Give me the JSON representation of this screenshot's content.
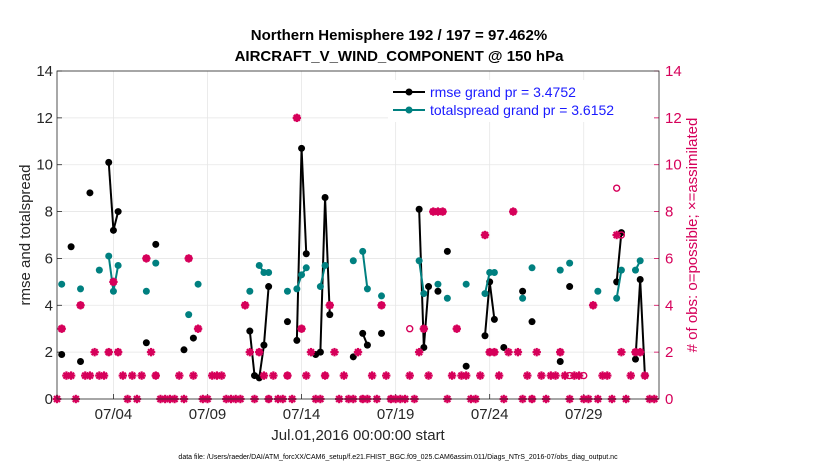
{
  "chart_data": {
    "type": "line",
    "title": "Northern Hemisphere 192 / 197 = 97.462%",
    "subtitle": "AIRCRAFT_V_WIND_COMPONENT @ 150 hPa",
    "xlabel": "Jul.01,2016 00:00:00 start",
    "ylabel": "rmse and totalspread",
    "y2label": "# of obs: o=possible; ×=assimilated",
    "xlim": [
      0,
      32
    ],
    "ylim": [
      0,
      14
    ],
    "y2lim": [
      0,
      14
    ],
    "x_ticks": [
      3,
      8,
      13,
      18,
      23,
      28
    ],
    "x_tick_labels": [
      "07/04",
      "07/09",
      "07/14",
      "07/19",
      "07/24",
      "07/29"
    ],
    "y_ticks": [
      0,
      2,
      4,
      6,
      8,
      10,
      12,
      14
    ],
    "y_tick_labels": [
      "0",
      "2",
      "4",
      "6",
      "8",
      "10",
      "12",
      "14"
    ],
    "grid": true,
    "legend_position": "top-right",
    "series": [
      {
        "name": "rmse grand pr = 3.4752",
        "color": "#000000",
        "points": [
          [
            0.25,
            1.9
          ],
          [
            0.75,
            6.5
          ],
          [
            1.25,
            1.6
          ],
          [
            1.75,
            8.8
          ],
          [
            2.75,
            10.1
          ],
          [
            3.0,
            7.2
          ],
          [
            3.25,
            8.0
          ],
          [
            4.75,
            2.4
          ],
          [
            5.25,
            6.6
          ],
          [
            6.75,
            2.1
          ],
          [
            7.25,
            2.6
          ],
          [
            10.25,
            2.9
          ],
          [
            10.5,
            1.0
          ],
          [
            10.75,
            0.9
          ],
          [
            11.0,
            2.3
          ],
          [
            11.25,
            4.8
          ],
          [
            12.25,
            3.3
          ],
          [
            12.75,
            2.5
          ],
          [
            13.0,
            10.7
          ],
          [
            13.25,
            6.2
          ],
          [
            13.75,
            1.9
          ],
          [
            14.0,
            2.0
          ],
          [
            14.25,
            8.6
          ],
          [
            14.5,
            3.6
          ],
          [
            15.75,
            1.8
          ],
          [
            16.25,
            2.8
          ],
          [
            16.5,
            2.3
          ],
          [
            17.25,
            2.8
          ],
          [
            19.25,
            8.1
          ],
          [
            19.5,
            2.2
          ],
          [
            19.75,
            4.8
          ],
          [
            20.25,
            4.6
          ],
          [
            20.75,
            6.3
          ],
          [
            21.75,
            1.4
          ],
          [
            22.75,
            2.7
          ],
          [
            23.0,
            5.0
          ],
          [
            23.25,
            3.4
          ],
          [
            23.75,
            2.2
          ],
          [
            24.75,
            4.6
          ],
          [
            25.25,
            3.3
          ],
          [
            26.75,
            1.6
          ],
          [
            27.25,
            4.8
          ],
          [
            29.75,
            5.0
          ],
          [
            30.0,
            7.1
          ],
          [
            30.75,
            1.7
          ],
          [
            31.0,
            5.1
          ],
          [
            31.25,
            1.0
          ]
        ]
      },
      {
        "name": "totalspread grand pr = 3.6152",
        "color": "#008080",
        "points": [
          [
            0.25,
            4.9
          ],
          [
            1.25,
            4.7
          ],
          [
            2.25,
            5.5
          ],
          [
            2.75,
            6.1
          ],
          [
            3.0,
            4.6
          ],
          [
            3.25,
            5.7
          ],
          [
            4.75,
            4.6
          ],
          [
            5.25,
            5.8
          ],
          [
            7.0,
            3.6
          ],
          [
            7.5,
            4.9
          ],
          [
            10.25,
            4.6
          ],
          [
            10.75,
            5.7
          ],
          [
            11.0,
            5.4
          ],
          [
            11.25,
            5.4
          ],
          [
            12.25,
            4.6
          ],
          [
            12.75,
            4.7
          ],
          [
            13.0,
            5.3
          ],
          [
            13.25,
            5.6
          ],
          [
            14.0,
            4.8
          ],
          [
            14.25,
            5.7
          ],
          [
            15.75,
            5.9
          ],
          [
            16.25,
            6.3
          ],
          [
            16.5,
            4.7
          ],
          [
            17.25,
            4.4
          ],
          [
            19.25,
            5.9
          ],
          [
            19.5,
            4.5
          ],
          [
            20.25,
            4.9
          ],
          [
            20.75,
            4.3
          ],
          [
            21.75,
            4.9
          ],
          [
            22.75,
            4.5
          ],
          [
            23.0,
            5.4
          ],
          [
            23.25,
            5.4
          ],
          [
            24.75,
            4.3
          ],
          [
            25.25,
            5.6
          ],
          [
            26.75,
            5.5
          ],
          [
            27.25,
            5.8
          ],
          [
            28.75,
            4.6
          ],
          [
            29.75,
            4.3
          ],
          [
            30.0,
            5.5
          ],
          [
            30.75,
            5.5
          ],
          [
            31.0,
            5.9
          ]
        ]
      }
    ],
    "obs_assimilated": {
      "name": "# of obs assimilated",
      "color": "#d6005a",
      "points": [
        [
          0,
          0
        ],
        [
          0.25,
          3
        ],
        [
          0.5,
          1
        ],
        [
          0.75,
          1
        ],
        [
          1.0,
          0
        ],
        [
          1.25,
          4
        ],
        [
          1.5,
          1
        ],
        [
          1.75,
          1
        ],
        [
          2.0,
          2
        ],
        [
          2.25,
          1
        ],
        [
          2.5,
          1
        ],
        [
          2.75,
          2
        ],
        [
          3.0,
          5
        ],
        [
          3.25,
          2
        ],
        [
          3.5,
          1
        ],
        [
          3.75,
          0
        ],
        [
          4.0,
          1
        ],
        [
          4.25,
          0
        ],
        [
          4.5,
          1
        ],
        [
          4.75,
          6
        ],
        [
          5.0,
          2
        ],
        [
          5.25,
          1
        ],
        [
          5.5,
          0
        ],
        [
          5.75,
          0
        ],
        [
          6.0,
          0
        ],
        [
          6.25,
          0
        ],
        [
          6.5,
          1
        ],
        [
          6.75,
          0
        ],
        [
          7.0,
          6
        ],
        [
          7.25,
          1
        ],
        [
          7.5,
          3
        ],
        [
          7.75,
          0
        ],
        [
          8.0,
          0
        ],
        [
          8.25,
          1
        ],
        [
          8.5,
          1
        ],
        [
          8.75,
          1
        ],
        [
          9.0,
          0
        ],
        [
          9.25,
          0
        ],
        [
          9.5,
          0
        ],
        [
          9.75,
          0
        ],
        [
          10.0,
          4
        ],
        [
          10.25,
          2
        ],
        [
          10.5,
          0
        ],
        [
          10.75,
          2
        ],
        [
          11.0,
          1
        ],
        [
          11.25,
          0
        ],
        [
          11.5,
          1
        ],
        [
          11.75,
          0
        ],
        [
          12.0,
          0
        ],
        [
          12.25,
          1
        ],
        [
          12.5,
          0
        ],
        [
          12.75,
          12
        ],
        [
          13.0,
          3
        ],
        [
          13.25,
          1
        ],
        [
          13.5,
          2
        ],
        [
          13.75,
          0
        ],
        [
          14.0,
          0
        ],
        [
          14.25,
          1
        ],
        [
          14.5,
          4
        ],
        [
          14.75,
          2
        ],
        [
          15.0,
          0
        ],
        [
          15.25,
          1
        ],
        [
          15.5,
          0
        ],
        [
          15.75,
          0
        ],
        [
          16.0,
          2
        ],
        [
          16.25,
          0
        ],
        [
          16.5,
          0
        ],
        [
          16.75,
          1
        ],
        [
          17.0,
          0
        ],
        [
          17.25,
          4
        ],
        [
          17.5,
          1
        ],
        [
          17.75,
          0
        ],
        [
          18.0,
          0
        ],
        [
          18.25,
          0
        ],
        [
          18.5,
          0
        ],
        [
          18.75,
          1
        ],
        [
          19.0,
          0
        ],
        [
          19.25,
          2
        ],
        [
          19.5,
          3
        ],
        [
          19.75,
          1
        ],
        [
          20.0,
          8
        ],
        [
          20.25,
          8
        ],
        [
          20.5,
          8
        ],
        [
          20.75,
          0
        ],
        [
          21.0,
          1
        ],
        [
          21.25,
          3
        ],
        [
          21.5,
          1
        ],
        [
          21.75,
          1
        ],
        [
          22.0,
          0
        ],
        [
          22.25,
          0
        ],
        [
          22.5,
          1
        ],
        [
          22.75,
          7
        ],
        [
          23.0,
          2
        ],
        [
          23.25,
          2
        ],
        [
          23.5,
          1
        ],
        [
          23.75,
          0
        ],
        [
          24.0,
          2
        ],
        [
          24.25,
          8
        ],
        [
          24.5,
          2
        ],
        [
          24.75,
          0
        ],
        [
          25.0,
          1
        ],
        [
          25.25,
          0
        ],
        [
          25.5,
          2
        ],
        [
          25.75,
          1
        ],
        [
          26.0,
          0
        ],
        [
          26.25,
          1
        ],
        [
          26.5,
          1
        ],
        [
          26.75,
          2
        ],
        [
          27.0,
          1
        ],
        [
          27.25,
          0
        ],
        [
          27.5,
          1
        ],
        [
          27.75,
          1
        ],
        [
          28.0,
          0
        ],
        [
          28.25,
          0
        ],
        [
          28.5,
          4
        ],
        [
          28.75,
          0
        ],
        [
          29.0,
          1
        ],
        [
          29.25,
          1
        ],
        [
          29.5,
          0
        ],
        [
          29.75,
          7
        ],
        [
          30.0,
          2
        ],
        [
          30.25,
          0
        ],
        [
          30.5,
          1
        ],
        [
          30.75,
          2
        ],
        [
          31.0,
          2
        ],
        [
          31.25,
          1
        ],
        [
          31.5,
          0
        ],
        [
          31.75,
          0
        ]
      ]
    },
    "obs_possible": {
      "name": "# of obs possible",
      "color": "#d6005a",
      "points": [
        [
          0.25,
          3
        ],
        [
          1.25,
          4
        ],
        [
          2.75,
          2
        ],
        [
          3.0,
          5
        ],
        [
          3.25,
          2
        ],
        [
          4.75,
          6
        ],
        [
          5.25,
          1
        ],
        [
          7.0,
          6
        ],
        [
          7.5,
          3
        ],
        [
          10.0,
          4
        ],
        [
          10.75,
          2
        ],
        [
          11.25,
          0
        ],
        [
          12.25,
          1
        ],
        [
          12.75,
          12
        ],
        [
          13.0,
          3
        ],
        [
          14.25,
          1
        ],
        [
          14.5,
          4
        ],
        [
          16.25,
          0
        ],
        [
          17.25,
          4
        ],
        [
          17.75,
          0
        ],
        [
          18.75,
          3
        ],
        [
          19.5,
          3
        ],
        [
          20.0,
          8
        ],
        [
          20.25,
          8
        ],
        [
          20.5,
          8
        ],
        [
          21.25,
          3
        ],
        [
          22.75,
          7
        ],
        [
          23.0,
          2
        ],
        [
          23.25,
          2
        ],
        [
          24.25,
          8
        ],
        [
          25.25,
          0
        ],
        [
          26.75,
          2
        ],
        [
          27.25,
          1
        ],
        [
          28.0,
          1
        ],
        [
          28.5,
          4
        ],
        [
          29.75,
          9
        ],
        [
          30.0,
          7
        ],
        [
          30.75,
          2
        ],
        [
          31.0,
          2
        ]
      ]
    }
  },
  "footer": "data file: /Users/raeder/DAI/ATM_forcXX/CAM6_setup/f.e21.FHIST_BGC.f09_025.CAM6assim.011/Diags_NTrS_2016-07/obs_diag_output.nc"
}
